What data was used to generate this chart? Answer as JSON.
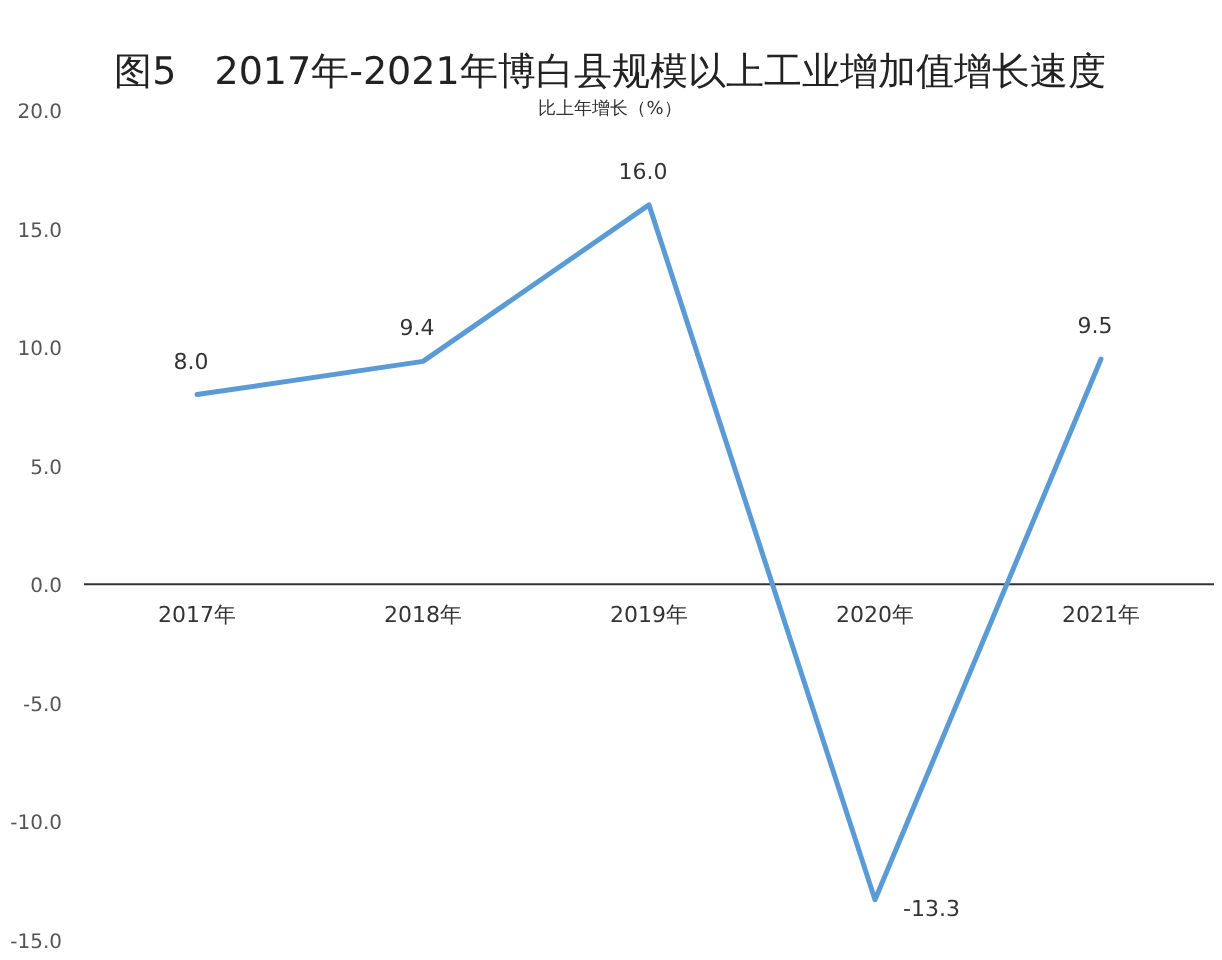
{
  "chart_data": {
    "type": "line",
    "title": "图5　2017年-2021年博白县规模以上工业增加值增长速度",
    "subtitle": "比上年增长（%）",
    "categories": [
      "2017年",
      "2018年",
      "2019年",
      "2020年",
      "2021年"
    ],
    "series": [
      {
        "color": "#5b9bd5",
        "values": [
          8.0,
          9.4,
          16.0,
          -13.3,
          9.5
        ]
      }
    ],
    "value_labels": [
      "8.0",
      "9.4",
      "16.0",
      "-13.3",
      "9.5"
    ],
    "ylim": [
      -15,
      20
    ],
    "yticks": [
      {
        "value": -15,
        "label": "-15.0"
      },
      {
        "value": -10,
        "label": "-10.0"
      },
      {
        "value": -5,
        "label": "-5.0"
      },
      {
        "value": 0,
        "label": "0.0"
      },
      {
        "value": 5,
        "label": "5.0"
      },
      {
        "value": 10,
        "label": "10.0"
      },
      {
        "value": 15,
        "label": "15.0"
      },
      {
        "value": 20,
        "label": "20.0"
      }
    ],
    "grid": false,
    "marker": "none"
  }
}
